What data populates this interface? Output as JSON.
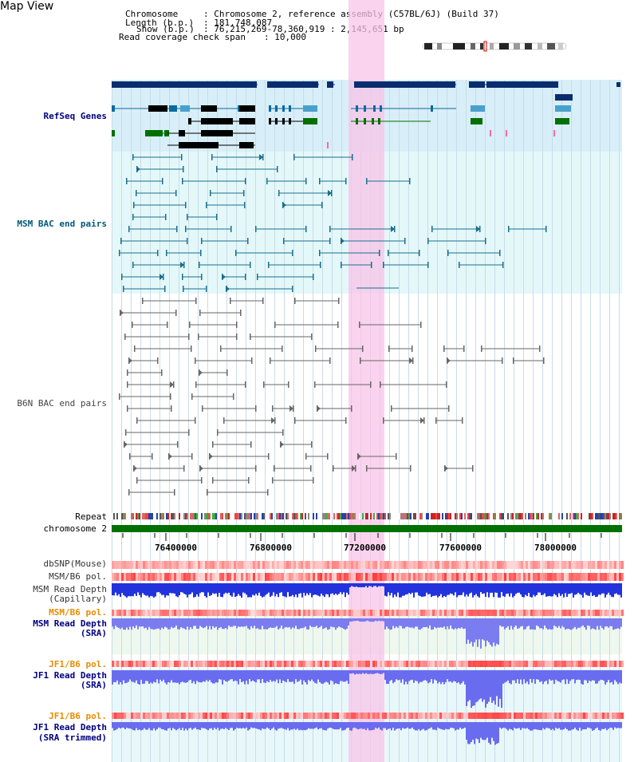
{
  "map_title": "Map View",
  "header": {
    "chromosome_key": "Chromosome",
    "chromosome_value": ": Chromosome 2, reference assembly (C57BL/6J) (Build 37)",
    "length_key": "Length (b.p.)",
    "length_value": ": 181,748,087",
    "show_key": "Show (b.p.)",
    "show_value": ": 76,215,269-78,360,919 : 2,145,651 bp",
    "coverage_key": "Read coverage check span",
    "coverage_value": ": 10,000"
  },
  "tracks": {
    "refseq": "RefSeq Genes",
    "msm_bac": "MSM BAC end pairs",
    "b6n_bac": "B6N BAC end pairs",
    "repeat": "Repeat",
    "chromosome": "chromosome 2",
    "dbsnp": "dbSNP(Mouse)",
    "msm_b6_pol": "MSM/B6 pol.",
    "msm_depth_cap_1": "MSM Read Depth",
    "msm_depth_cap_2": "(Capillary)",
    "msm_b6_pol2": "MSM/B6 pol.",
    "msm_depth_sra_1": "MSM Read Depth",
    "msm_depth_sra_2": "(SRA)",
    "jf1_b6_pol": "JF1/B6 pol.",
    "jf1_depth_sra_1": "JF1 Read Depth",
    "jf1_depth_sra_2": "(SRA)",
    "jf1_b6_pol2": "JF1/B6 pol.",
    "jf1_depth_trim_1": "JF1 Read Depth",
    "jf1_depth_trim_2": "(SRA trimmed)"
  },
  "axis_ticks": [
    "76400000",
    "76800000",
    "77200000",
    "77600000",
    "78000000"
  ],
  "colors": {
    "refseq_bg": "#d8eef8",
    "msm_bg": "#e4f8fa",
    "highlight": "#f8c4e8",
    "chromosome_bar": "#007000",
    "navy": "#000080",
    "orange": "#e88c00"
  }
}
